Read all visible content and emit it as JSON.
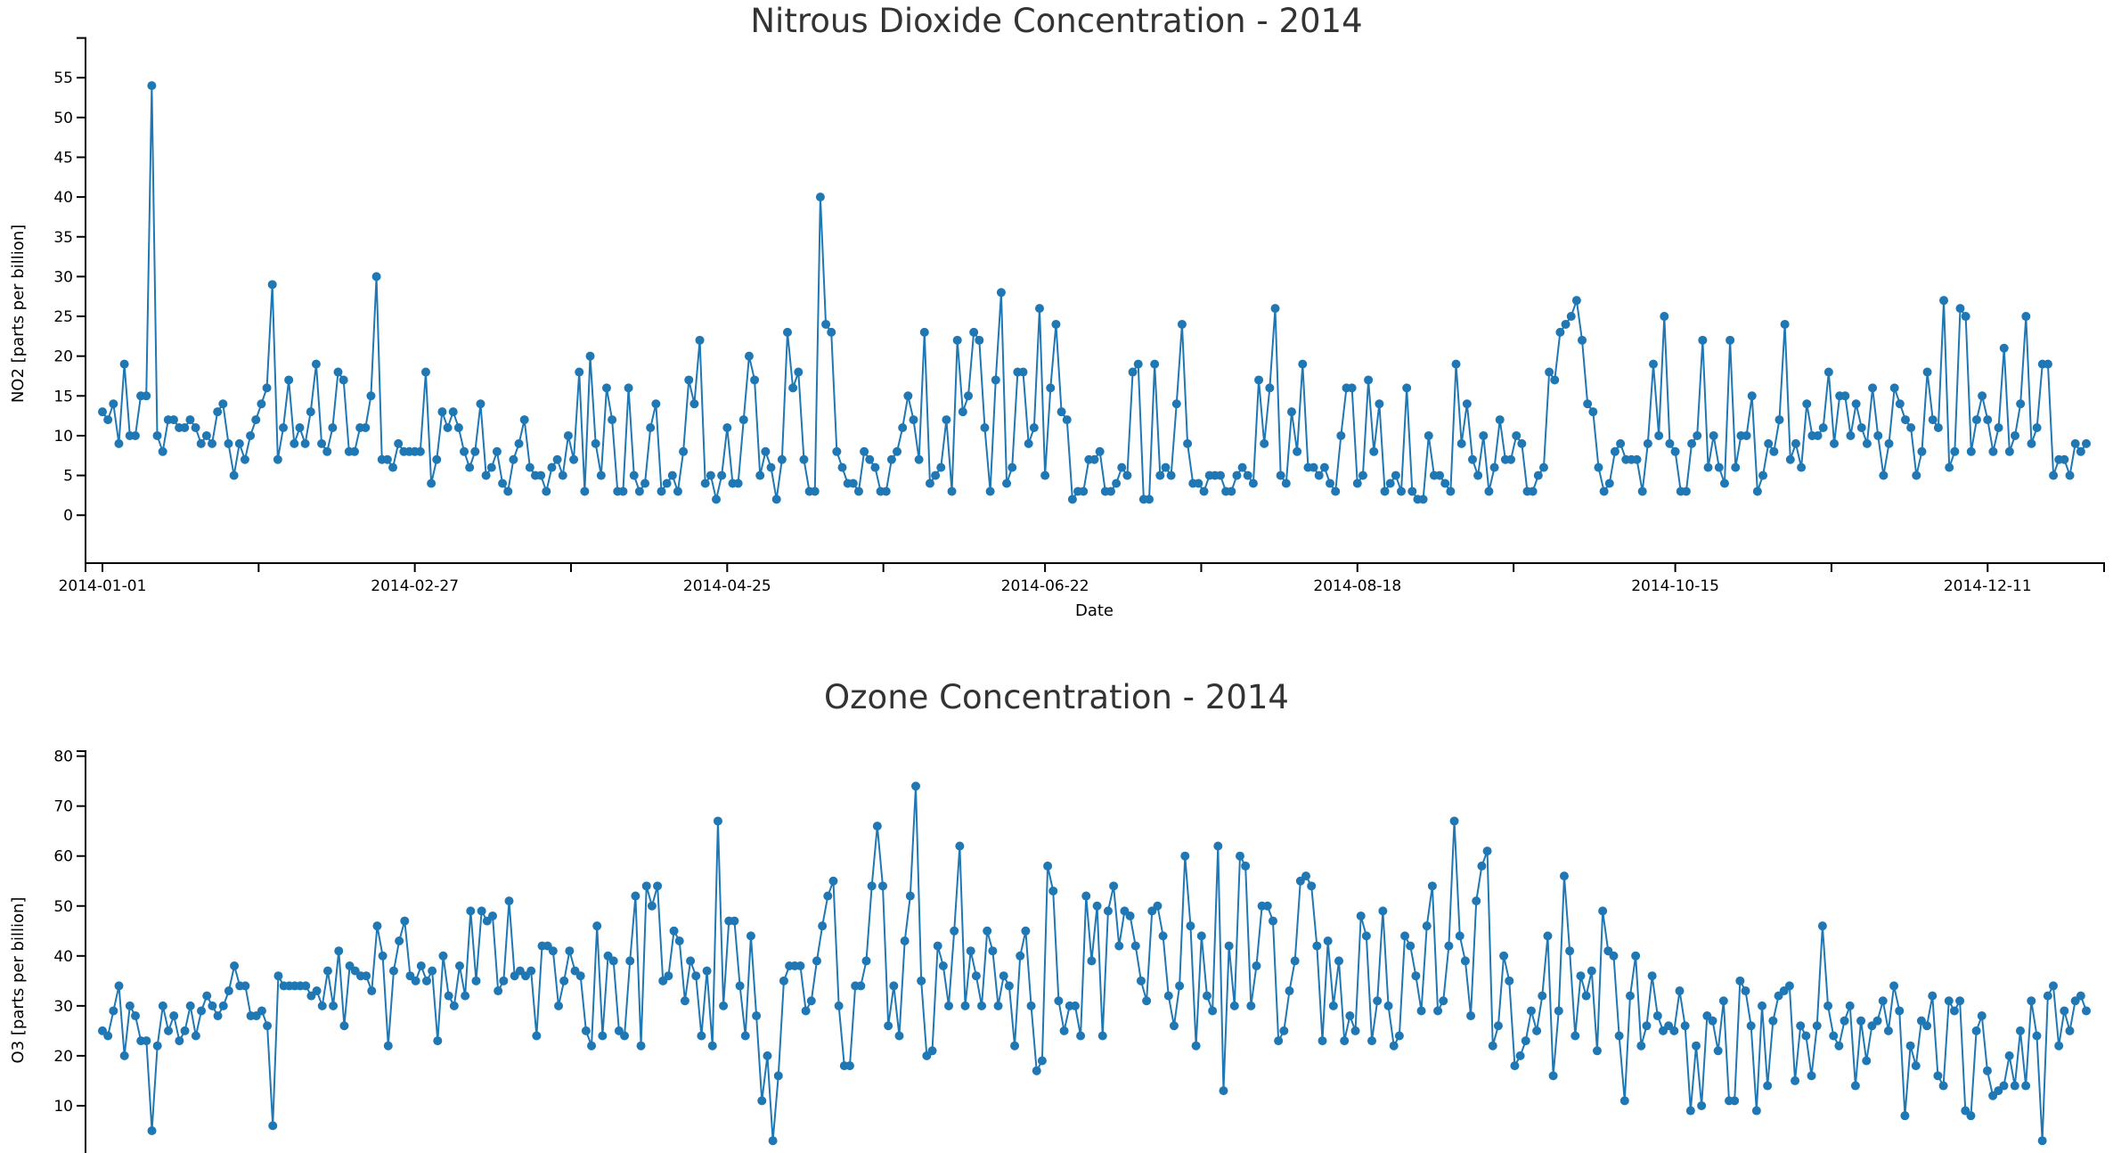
{
  "chart_data": [
    {
      "type": "line",
      "title": "Nitrous Dioxide Concentration - 2014",
      "xlabel": "Date",
      "ylabel": "NO2 [parts per billion]",
      "x_start": "2014-01-01",
      "x_end": "2014-12-31",
      "ylim": [
        -3,
        60
      ],
      "y_ticks": [
        0,
        5,
        10,
        15,
        20,
        25,
        30,
        35,
        40,
        45,
        50,
        55
      ],
      "x_tick_labels": [
        "2014-01-01",
        "2014-02-27",
        "2014-04-25",
        "2014-06-22",
        "2014-08-18",
        "2014-10-15",
        "2014-12-11"
      ],
      "markers": true,
      "color": "#1f77b4",
      "series": [
        {
          "values": [
            13,
            12,
            14,
            9,
            19,
            10,
            10,
            15,
            15,
            54,
            10,
            8,
            12,
            12,
            11,
            11,
            12,
            11,
            9,
            10,
            9,
            13,
            14,
            9,
            5,
            9,
            7,
            10,
            12,
            14,
            16,
            29,
            7,
            11,
            17,
            9,
            11,
            9,
            13,
            19,
            9,
            8,
            11,
            18,
            17,
            8,
            8,
            11,
            11,
            15,
            30,
            7,
            7,
            6,
            9,
            8,
            8,
            8,
            8,
            18,
            4,
            7,
            13,
            11,
            13,
            11,
            8,
            6,
            8,
            14,
            5,
            6,
            8,
            4,
            3,
            7,
            9,
            12,
            6,
            5,
            5,
            3,
            6,
            7,
            5,
            10,
            7,
            18,
            3,
            20,
            9,
            5,
            16,
            12,
            3,
            3,
            16,
            5,
            3,
            4,
            11,
            14,
            3,
            4,
            5,
            3,
            8,
            17,
            14,
            22,
            4,
            5,
            2,
            5,
            11,
            4,
            4,
            12,
            20,
            17,
            5,
            8,
            6,
            2,
            7,
            23,
            16,
            18,
            7,
            3,
            3,
            40,
            24,
            23,
            8,
            6,
            4,
            4,
            3,
            8,
            7,
            6,
            3,
            3,
            7,
            8,
            11,
            15,
            12,
            7,
            23,
            4,
            5,
            6,
            12,
            3,
            22,
            13,
            15,
            23,
            22,
            11,
            3,
            17,
            28,
            4,
            6,
            18,
            18,
            9,
            11,
            26,
            5,
            16,
            24,
            13,
            12,
            2,
            3,
            3,
            7,
            7,
            8,
            3,
            3,
            4,
            6,
            5,
            18,
            19,
            2,
            2,
            19,
            5,
            6,
            5,
            14,
            24,
            9,
            4,
            4,
            3,
            5,
            5,
            5,
            3,
            3,
            5,
            6,
            5,
            4,
            17,
            9,
            16,
            26,
            5,
            4,
            13,
            8,
            19,
            6,
            6,
            5,
            6,
            4,
            3,
            10,
            16,
            16,
            4,
            5,
            17,
            8,
            14,
            3,
            4,
            5,
            3,
            16,
            3,
            2,
            2,
            10,
            5,
            5,
            4,
            3,
            19,
            9,
            14,
            7,
            5,
            10,
            3,
            6,
            12,
            7,
            7,
            10,
            9,
            3,
            3,
            5,
            6,
            18,
            17,
            23,
            24,
            25,
            27,
            22,
            14,
            13,
            6,
            3,
            4,
            8,
            9,
            7,
            7,
            7,
            3,
            9,
            19,
            10,
            25,
            9,
            8,
            3,
            3,
            9,
            10,
            22,
            6,
            10,
            6,
            4,
            22,
            6,
            10,
            10,
            15,
            3,
            5,
            9,
            8,
            12,
            24,
            7,
            9,
            6,
            14,
            10,
            10,
            11,
            18,
            9,
            15,
            15,
            10,
            14,
            11,
            9,
            16,
            10,
            5,
            9,
            16,
            14,
            12,
            11,
            5,
            8,
            18,
            12,
            11,
            27,
            6,
            8,
            26,
            25,
            8,
            12,
            15,
            12,
            8,
            11,
            21,
            8,
            10,
            14,
            25,
            9,
            11,
            19,
            19,
            5,
            7,
            7,
            5,
            9,
            8,
            9
          ]
        }
      ]
    },
    {
      "type": "line",
      "title": "Ozone Concentration - 2014",
      "xlabel": "",
      "ylabel": "O3 [parts per billion]",
      "x_start": "2014-01-01",
      "x_end": "2014-12-31",
      "ylim": [
        0,
        81
      ],
      "y_ticks": [
        10,
        20,
        30,
        40,
        50,
        60,
        70,
        80
      ],
      "markers": true,
      "color": "#1f77b4",
      "series": [
        {
          "values": [
            25,
            24,
            29,
            34,
            20,
            30,
            28,
            23,
            23,
            5,
            22,
            30,
            25,
            28,
            23,
            25,
            30,
            24,
            29,
            32,
            30,
            28,
            30,
            33,
            38,
            34,
            34,
            28,
            28,
            29,
            26,
            6,
            36,
            34,
            34,
            34,
            34,
            34,
            32,
            33,
            30,
            37,
            30,
            41,
            26,
            38,
            37,
            36,
            36,
            33,
            46,
            40,
            22,
            37,
            43,
            47,
            36,
            35,
            38,
            35,
            37,
            23,
            40,
            32,
            30,
            38,
            32,
            49,
            35,
            49,
            47,
            48,
            33,
            35,
            51,
            36,
            37,
            36,
            37,
            24,
            42,
            42,
            41,
            30,
            35,
            41,
            37,
            36,
            25,
            22,
            46,
            24,
            40,
            39,
            25,
            24,
            39,
            52,
            22,
            54,
            50,
            54,
            35,
            36,
            45,
            43,
            31,
            39,
            36,
            24,
            37,
            22,
            67,
            30,
            47,
            47,
            34,
            24,
            44,
            28,
            11,
            20,
            3,
            16,
            35,
            38,
            38,
            38,
            29,
            31,
            39,
            46,
            52,
            55,
            30,
            18,
            18,
            34,
            34,
            39,
            54,
            66,
            54,
            26,
            34,
            24,
            43,
            52,
            74,
            35,
            20,
            21,
            42,
            38,
            30,
            45,
            62,
            30,
            41,
            36,
            30,
            45,
            41,
            30,
            36,
            34,
            22,
            40,
            45,
            30,
            17,
            19,
            58,
            53,
            31,
            25,
            30,
            30,
            24,
            52,
            39,
            50,
            24,
            49,
            54,
            42,
            49,
            48,
            42,
            35,
            31,
            49,
            50,
            44,
            32,
            26,
            34,
            60,
            46,
            22,
            44,
            32,
            29,
            62,
            13,
            42,
            30,
            60,
            58,
            30,
            38,
            50,
            50,
            47,
            23,
            25,
            33,
            39,
            55,
            56,
            54,
            42,
            23,
            43,
            30,
            39,
            23,
            28,
            25,
            48,
            44,
            23,
            31,
            49,
            30,
            22,
            24,
            44,
            42,
            36,
            29,
            46,
            54,
            29,
            31,
            42,
            67,
            44,
            39,
            28,
            51,
            58,
            61,
            22,
            26,
            40,
            35,
            18,
            20,
            23,
            29,
            25,
            32,
            44,
            16,
            29,
            56,
            41,
            24,
            36,
            32,
            37,
            21,
            49,
            41,
            40,
            24,
            11,
            32,
            40,
            22,
            26,
            36,
            28,
            25,
            26,
            25,
            33,
            26,
            9,
            22,
            10,
            28,
            27,
            21,
            31,
            11,
            11,
            35,
            33,
            26,
            9,
            30,
            14,
            27,
            32,
            33,
            34,
            15,
            26,
            24,
            16,
            26,
            46,
            30,
            24,
            22,
            27,
            30,
            14,
            27,
            19,
            26,
            27,
            31,
            25,
            34,
            29,
            8,
            22,
            18,
            27,
            26,
            32,
            16,
            14,
            31,
            29,
            31,
            9,
            8,
            25,
            28,
            17,
            12,
            13,
            14,
            20,
            14,
            25,
            14,
            31,
            24,
            3,
            32,
            34,
            22,
            29,
            25,
            31,
            32,
            29
          ]
        }
      ]
    }
  ]
}
